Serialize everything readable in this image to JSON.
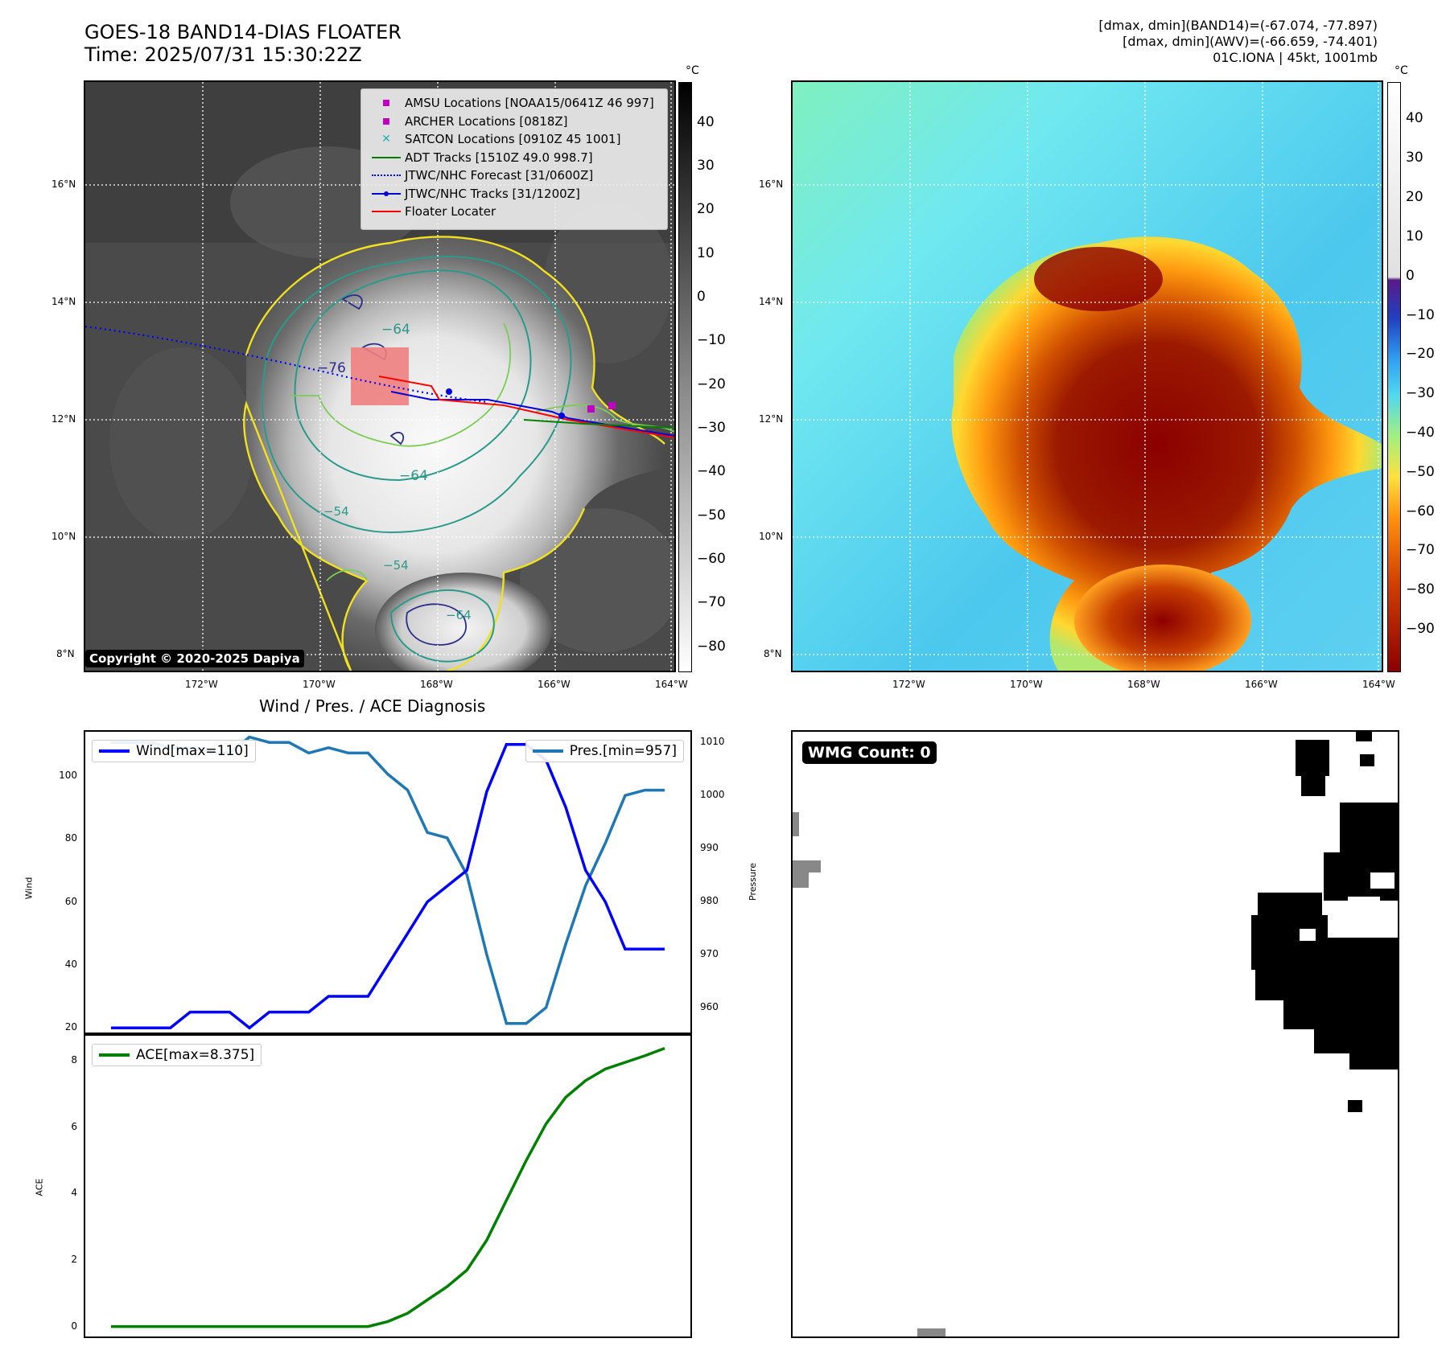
{
  "header": {
    "title_line1": "GOES-18 BAND14-DIAS FLOATER",
    "title_line2": "Time: 2025/07/31 15:30:22Z",
    "info_line1": "[dmax, dmin](BAND14)=(-67.074, -77.897)",
    "info_line2": "[dmax, dmin](AWV)=(-66.659, -74.401)",
    "info_line3": "01C.IONA | 45kt, 1001mb"
  },
  "map": {
    "lat_labels": [
      "16°N",
      "14°N",
      "12°N",
      "10°N",
      "8°N"
    ],
    "lon_labels": [
      "172°W",
      "170°W",
      "168°W",
      "166°W",
      "164°W"
    ],
    "contour_labels": [
      "−64",
      "−76",
      "−64",
      "−54",
      "−54",
      "−64"
    ],
    "copyright": "Copyright © 2020-2025 Dapiya",
    "legend": [
      {
        "label": "AMSU Locations [NOAA15/0641Z 46 997]",
        "color": "#c000c0",
        "kind": "square"
      },
      {
        "label": "ARCHER Locations [0818Z]",
        "color": "#c000c0",
        "kind": "square"
      },
      {
        "label": "SATCON Locations [0910Z 45 1001]",
        "color": "#20b0b0",
        "kind": "x"
      },
      {
        "label": "ADT Tracks [1510Z 49.0 998.7]",
        "color": "#008000",
        "kind": "line"
      },
      {
        "label": "JTWC/NHC Forecast [31/0600Z]",
        "color": "#0000ff",
        "kind": "dotted"
      },
      {
        "label": "JTWC/NHC Tracks [31/1200Z]",
        "color": "#0000cc",
        "kind": "linedot"
      },
      {
        "label": "Floater Locater",
        "color": "#ff0000",
        "kind": "line"
      }
    ]
  },
  "colorbar_gray": {
    "unit": "°C",
    "ticks": [
      "40",
      "30",
      "20",
      "10",
      "0",
      "−10",
      "−20",
      "−30",
      "−40",
      "−50",
      "−60",
      "−70",
      "−80"
    ]
  },
  "colorbar_color": {
    "unit": "°C",
    "ticks": [
      "40",
      "30",
      "20",
      "10",
      "0",
      "−10",
      "−20",
      "−30",
      "−40",
      "−50",
      "−60",
      "−70",
      "−80",
      "−90"
    ]
  },
  "wind_chart_title": "Wind / Pres. / ACE Diagnosis",
  "wmg": {
    "label": "WMG Count: 0",
    "ylabel": "Pressure"
  },
  "chart_data": [
    {
      "type": "line",
      "title": "Wind / Pres. / ACE Diagnosis",
      "ylabel": "Wind",
      "y2label": "Pressure",
      "ylim": [
        18,
        114
      ],
      "y2lim": [
        955,
        1012
      ],
      "yticks": [
        "20",
        "40",
        "60",
        "80",
        "100"
      ],
      "y2ticks": [
        "960",
        "970",
        "980",
        "990",
        "1000",
        "1010"
      ],
      "series": [
        {
          "name": "Wind[max=110]",
          "color": "#0000ff",
          "axis": "left",
          "values": [
            20,
            20,
            20,
            20,
            25,
            25,
            25,
            20,
            25,
            25,
            25,
            30,
            30,
            30,
            40,
            50,
            60,
            65,
            70,
            95,
            110,
            110,
            105,
            90,
            70,
            60,
            45,
            45,
            45
          ]
        },
        {
          "name": "Pres.[min=957]",
          "color": "#1f77b4",
          "axis": "right",
          "values": [
            1010,
            1010,
            1010,
            1009,
            1009,
            1008,
            1008,
            1011,
            1010,
            1010,
            1008,
            1009,
            1008,
            1008,
            1004,
            1001,
            993,
            992,
            985,
            970,
            957,
            957,
            960,
            972,
            983,
            991,
            1000,
            1001,
            1001
          ]
        }
      ]
    },
    {
      "type": "line",
      "ylabel": "ACE",
      "ylim": [
        -0.3,
        8.8
      ],
      "yticks": [
        "0",
        "2",
        "4",
        "6",
        "8"
      ],
      "series": [
        {
          "name": "ACE[max=8.375]",
          "color": "#008000",
          "values": [
            0,
            0,
            0,
            0,
            0,
            0,
            0,
            0,
            0,
            0,
            0,
            0,
            0,
            0,
            0.15,
            0.4,
            0.8,
            1.2,
            1.7,
            2.6,
            3.8,
            5.0,
            6.1,
            6.9,
            7.4,
            7.75,
            7.95,
            8.15,
            8.375
          ]
        }
      ]
    }
  ]
}
